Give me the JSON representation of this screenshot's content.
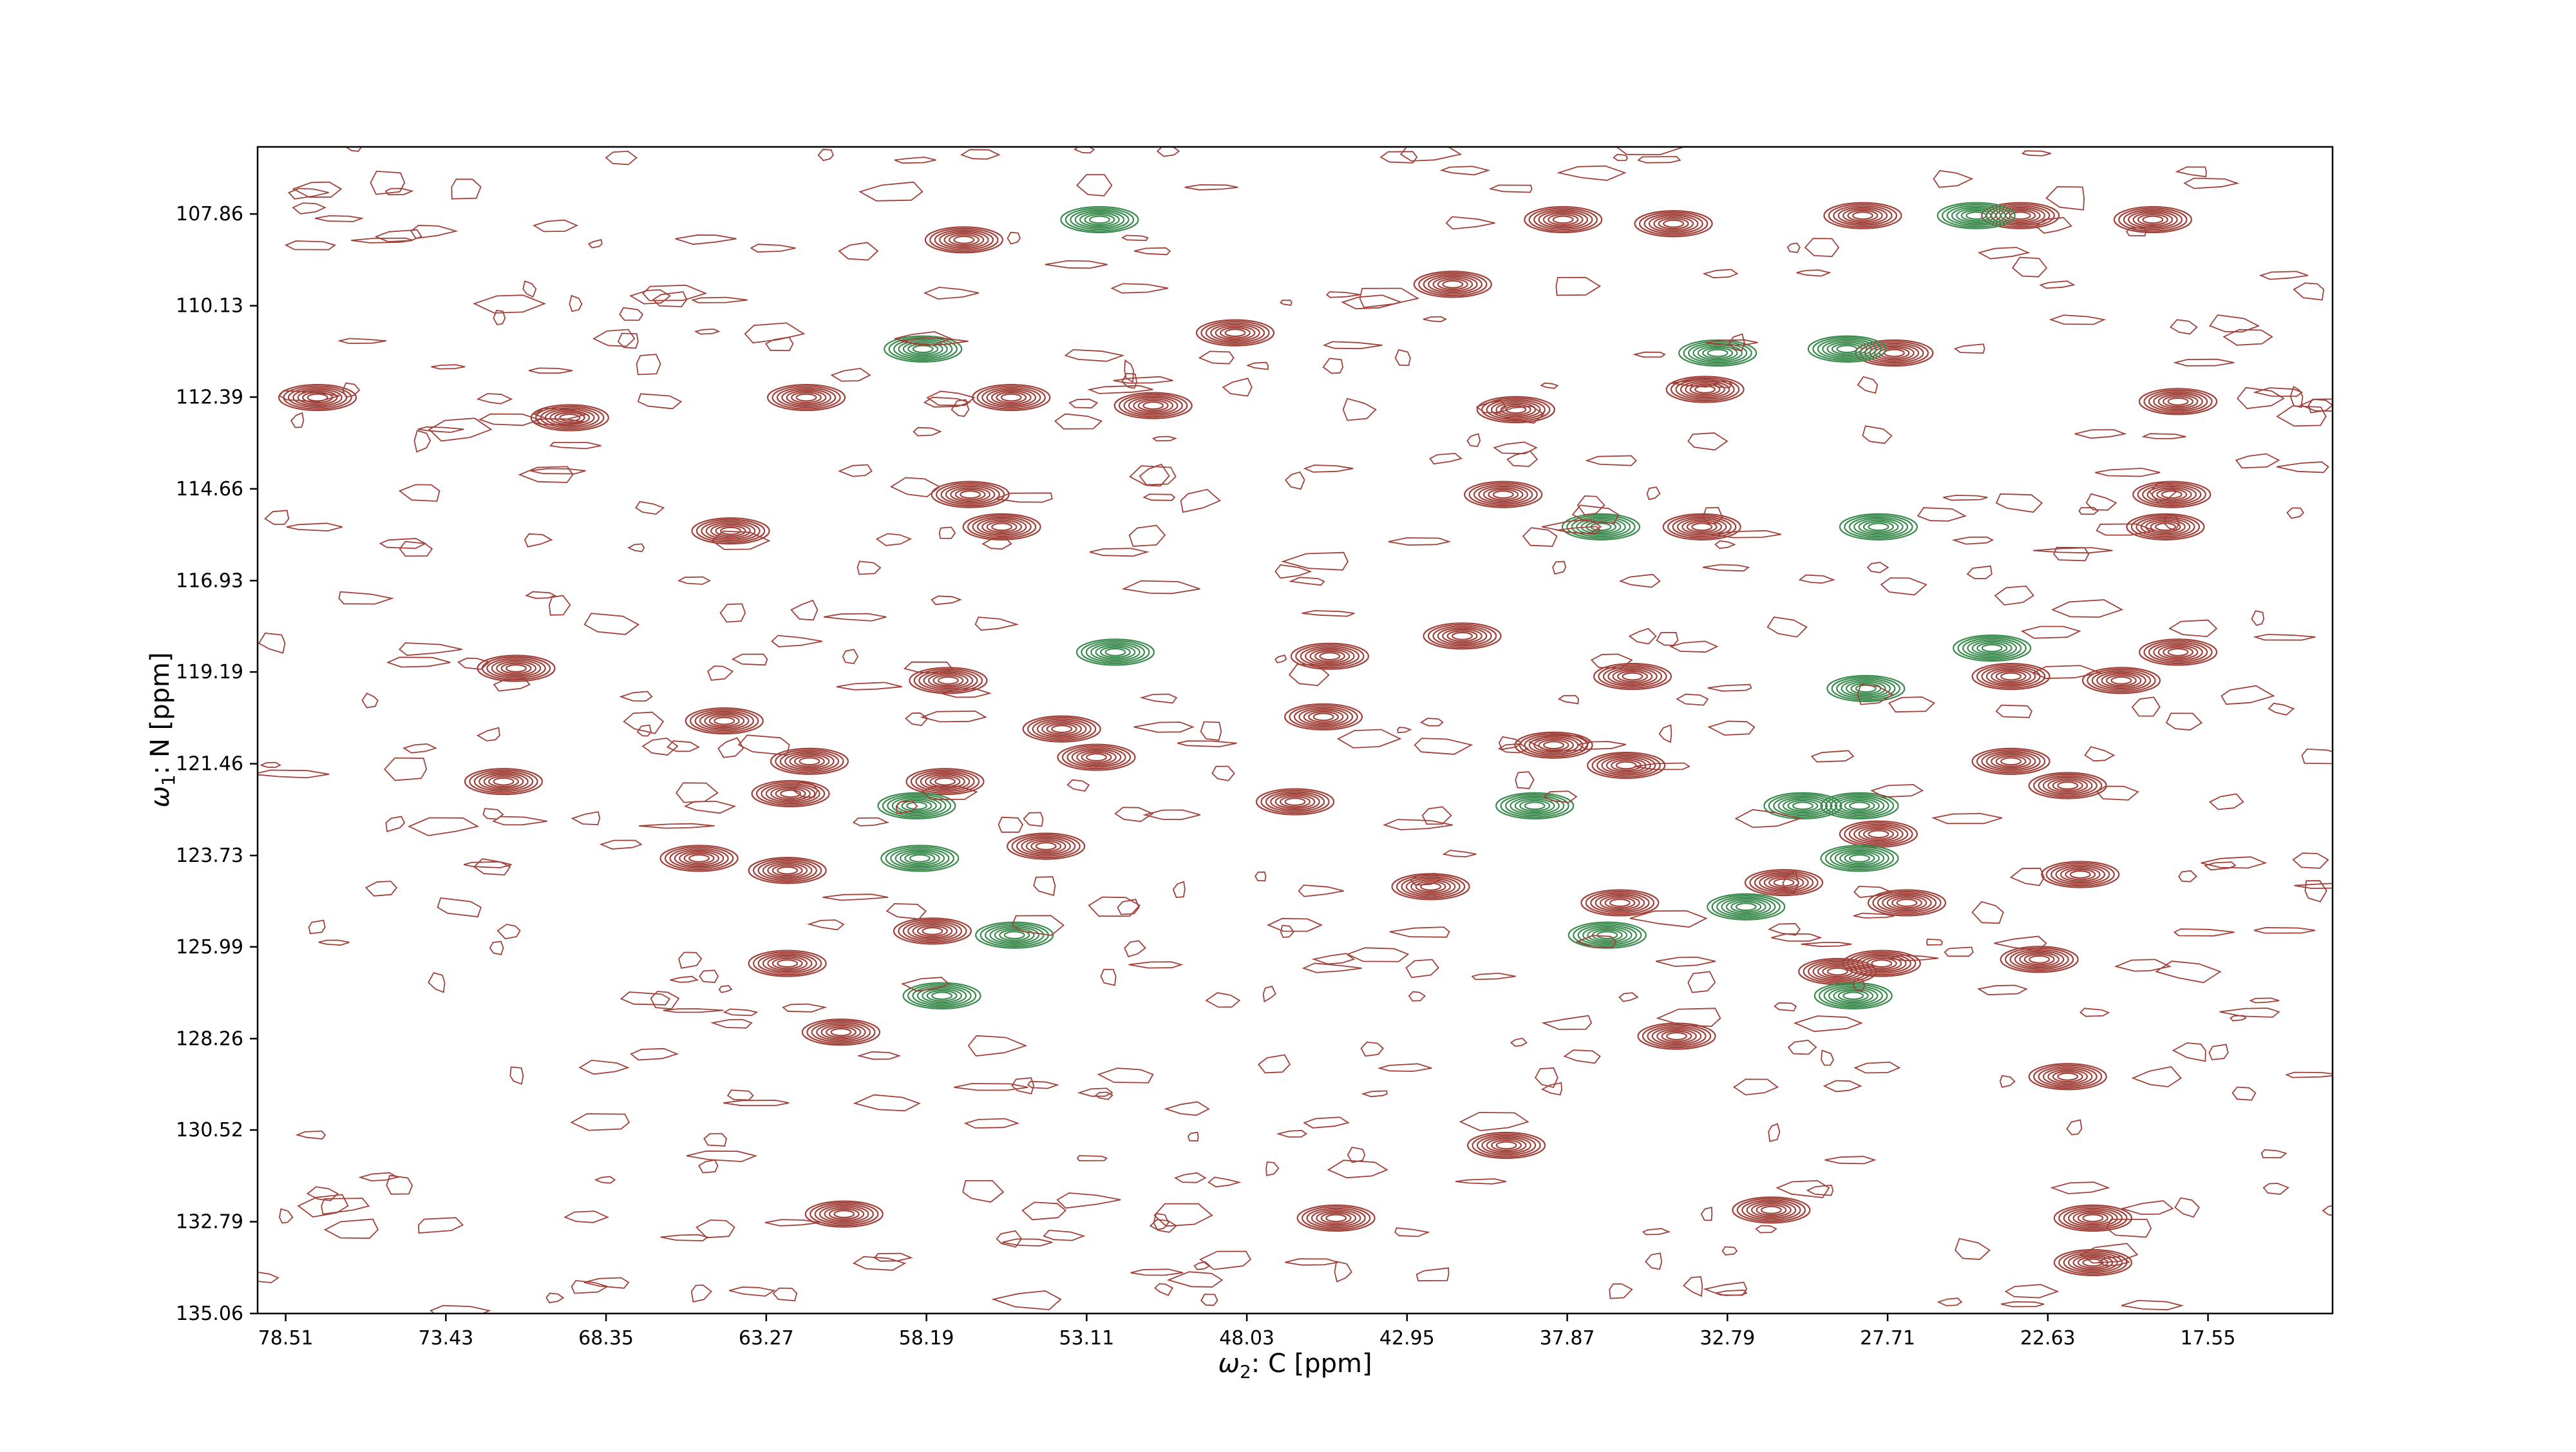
{
  "figure": {
    "background": "#ffffff"
  },
  "chart_data": {
    "type": "contour",
    "title": "",
    "xlabel": "ω2: C [ppm]",
    "ylabel": "ω1: N [ppm]",
    "x_axis": {
      "label_symbol": "ω",
      "label_subscript": "2",
      "label_rest": ": C [ppm]",
      "range": [
        79.4,
        13.6
      ],
      "inverted": true,
      "ticks": [
        78.51,
        73.43,
        68.35,
        63.27,
        58.19,
        53.11,
        48.03,
        42.95,
        37.87,
        32.79,
        27.71,
        22.63,
        17.55
      ],
      "tick_labels": [
        "78.51",
        "73.43",
        "68.35",
        "63.27",
        "58.19",
        "53.11",
        "48.03",
        "42.95",
        "37.87",
        "32.79",
        "27.71",
        "22.63",
        "17.55"
      ]
    },
    "y_axis": {
      "label_symbol": "ω",
      "label_subscript": "1",
      "label_rest": ": N [ppm]",
      "range": [
        106.2,
        135.06
      ],
      "inverted": true,
      "ticks": [
        107.86,
        110.13,
        112.39,
        114.66,
        116.93,
        119.19,
        121.46,
        123.73,
        125.99,
        128.26,
        130.52,
        132.79,
        135.06
      ],
      "tick_labels": [
        "107.86",
        "110.13",
        "112.39",
        "114.66",
        "116.93",
        "119.19",
        "121.46",
        "123.73",
        "125.99",
        "128.26",
        "130.52",
        "132.79",
        "135.06"
      ]
    },
    "grid": false,
    "legend": "none",
    "colors": {
      "positive": "#a0413a",
      "negative": "#3b8a4e"
    },
    "positive_peaks": [
      {
        "x": 57.0,
        "y": 108.5
      },
      {
        "x": 48.4,
        "y": 110.8
      },
      {
        "x": 41.5,
        "y": 109.6
      },
      {
        "x": 38.0,
        "y": 108.0
      },
      {
        "x": 34.5,
        "y": 108.1
      },
      {
        "x": 28.5,
        "y": 107.9
      },
      {
        "x": 23.5,
        "y": 107.9
      },
      {
        "x": 19.3,
        "y": 108.0
      },
      {
        "x": 27.5,
        "y": 111.3
      },
      {
        "x": 55.5,
        "y": 112.4
      },
      {
        "x": 51.0,
        "y": 112.6
      },
      {
        "x": 39.5,
        "y": 112.7
      },
      {
        "x": 33.5,
        "y": 112.2
      },
      {
        "x": 18.5,
        "y": 112.5
      },
      {
        "x": 77.5,
        "y": 112.4
      },
      {
        "x": 69.5,
        "y": 112.9
      },
      {
        "x": 62.0,
        "y": 112.4
      },
      {
        "x": 56.8,
        "y": 114.8
      },
      {
        "x": 55.8,
        "y": 115.6
      },
      {
        "x": 64.4,
        "y": 115.7
      },
      {
        "x": 39.9,
        "y": 114.8
      },
      {
        "x": 33.6,
        "y": 115.6
      },
      {
        "x": 18.7,
        "y": 114.8
      },
      {
        "x": 18.9,
        "y": 115.6
      },
      {
        "x": 71.2,
        "y": 119.1
      },
      {
        "x": 57.5,
        "y": 119.4
      },
      {
        "x": 45.4,
        "y": 118.8
      },
      {
        "x": 45.6,
        "y": 120.3
      },
      {
        "x": 41.2,
        "y": 118.3
      },
      {
        "x": 35.8,
        "y": 119.3
      },
      {
        "x": 18.5,
        "y": 118.7
      },
      {
        "x": 20.3,
        "y": 119.4
      },
      {
        "x": 23.8,
        "y": 119.3
      },
      {
        "x": 64.6,
        "y": 120.4
      },
      {
        "x": 61.9,
        "y": 121.4
      },
      {
        "x": 62.5,
        "y": 122.2
      },
      {
        "x": 71.6,
        "y": 121.9
      },
      {
        "x": 57.6,
        "y": 121.9
      },
      {
        "x": 53.9,
        "y": 120.6
      },
      {
        "x": 52.8,
        "y": 121.3
      },
      {
        "x": 38.3,
        "y": 121.0
      },
      {
        "x": 36.0,
        "y": 121.5
      },
      {
        "x": 23.8,
        "y": 121.4
      },
      {
        "x": 22.0,
        "y": 122.0
      },
      {
        "x": 46.5,
        "y": 122.4
      },
      {
        "x": 65.4,
        "y": 123.8
      },
      {
        "x": 62.6,
        "y": 124.1
      },
      {
        "x": 54.4,
        "y": 123.5
      },
      {
        "x": 36.2,
        "y": 124.9
      },
      {
        "x": 31.0,
        "y": 124.4
      },
      {
        "x": 28.0,
        "y": 123.2
      },
      {
        "x": 27.1,
        "y": 124.9
      },
      {
        "x": 21.6,
        "y": 124.2
      },
      {
        "x": 42.2,
        "y": 124.5
      },
      {
        "x": 58.0,
        "y": 125.6
      },
      {
        "x": 27.9,
        "y": 126.4
      },
      {
        "x": 62.6,
        "y": 126.4
      },
      {
        "x": 29.3,
        "y": 126.6
      },
      {
        "x": 22.9,
        "y": 126.3
      },
      {
        "x": 60.9,
        "y": 128.1
      },
      {
        "x": 34.4,
        "y": 128.2
      },
      {
        "x": 22.0,
        "y": 129.2
      },
      {
        "x": 39.8,
        "y": 130.9
      },
      {
        "x": 60.8,
        "y": 132.6
      },
      {
        "x": 21.2,
        "y": 132.7
      },
      {
        "x": 21.2,
        "y": 133.8
      },
      {
        "x": 31.4,
        "y": 132.5
      },
      {
        "x": 45.2,
        "y": 132.7
      }
    ],
    "negative_peaks": [
      {
        "x": 52.7,
        "y": 108.0
      },
      {
        "x": 58.3,
        "y": 111.2
      },
      {
        "x": 33.1,
        "y": 111.3
      },
      {
        "x": 29.0,
        "y": 111.2
      },
      {
        "x": 28.0,
        "y": 115.6
      },
      {
        "x": 36.8,
        "y": 115.6
      },
      {
        "x": 52.2,
        "y": 118.7
      },
      {
        "x": 28.4,
        "y": 119.6
      },
      {
        "x": 30.4,
        "y": 122.5
      },
      {
        "x": 58.5,
        "y": 122.5
      },
      {
        "x": 58.4,
        "y": 123.8
      },
      {
        "x": 55.4,
        "y": 125.7
      },
      {
        "x": 57.7,
        "y": 127.2
      },
      {
        "x": 38.9,
        "y": 122.5
      },
      {
        "x": 36.6,
        "y": 125.7
      },
      {
        "x": 32.2,
        "y": 125.0
      },
      {
        "x": 28.8,
        "y": 127.2
      },
      {
        "x": 28.6,
        "y": 123.8
      },
      {
        "x": 24.4,
        "y": 118.6
      },
      {
        "x": 24.9,
        "y": 107.9
      },
      {
        "x": 28.6,
        "y": 122.5
      }
    ],
    "noise_seed": 7
  }
}
